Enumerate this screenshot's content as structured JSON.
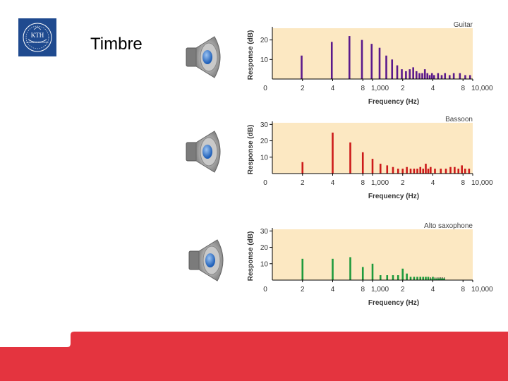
{
  "slide": {
    "title": "Timbre"
  },
  "logo": {
    "text": "KTH",
    "subtext": "VETENSKAP OCH KONST"
  },
  "colors": {
    "plot_bg": "#fce8c2",
    "footer": "#e4343f",
    "logo_bg": "#1f4a8f",
    "speaker_blue": "#2f73c9"
  },
  "chart_data": [
    {
      "type": "bar",
      "title": "Guitar",
      "xlabel": "Frequency (Hz)",
      "ylabel": "Response (dB)",
      "ylim": [
        0,
        26
      ],
      "yticks": [
        10,
        20
      ],
      "xscale": "log",
      "xlim": [
        100,
        10000
      ],
      "xtick_values": [
        100,
        200,
        400,
        800,
        1000,
        2000,
        4000,
        8000,
        10000
      ],
      "xtick_labels": [
        "0",
        "2",
        "4",
        "8",
        "1,000",
        "2",
        "4",
        "8",
        "10,000"
      ],
      "color": "#5b1a8c",
      "bars": [
        {
          "x": 196,
          "y": 12
        },
        {
          "x": 392,
          "y": 19
        },
        {
          "x": 588,
          "y": 22
        },
        {
          "x": 784,
          "y": 20
        },
        {
          "x": 980,
          "y": 18
        },
        {
          "x": 1176,
          "y": 16
        },
        {
          "x": 1372,
          "y": 12
        },
        {
          "x": 1568,
          "y": 10
        },
        {
          "x": 1764,
          "y": 7
        },
        {
          "x": 1960,
          "y": 5
        },
        {
          "x": 2156,
          "y": 4
        },
        {
          "x": 2352,
          "y": 5
        },
        {
          "x": 2548,
          "y": 6
        },
        {
          "x": 2744,
          "y": 4
        },
        {
          "x": 2940,
          "y": 3
        },
        {
          "x": 3136,
          "y": 3
        },
        {
          "x": 3332,
          "y": 5
        },
        {
          "x": 3528,
          "y": 3
        },
        {
          "x": 3724,
          "y": 2
        },
        {
          "x": 3920,
          "y": 3
        },
        {
          "x": 4116,
          "y": 2
        },
        {
          "x": 4508,
          "y": 3
        },
        {
          "x": 4900,
          "y": 2
        },
        {
          "x": 5292,
          "y": 3
        },
        {
          "x": 5880,
          "y": 2
        },
        {
          "x": 6468,
          "y": 3
        },
        {
          "x": 7448,
          "y": 3
        },
        {
          "x": 8428,
          "y": 2
        },
        {
          "x": 9408,
          "y": 2
        }
      ]
    },
    {
      "type": "bar",
      "title": "Bassoon",
      "xlabel": "Frequency (Hz)",
      "ylabel": "Response (dB)",
      "ylim": [
        0,
        31
      ],
      "yticks": [
        10,
        20,
        30
      ],
      "xscale": "log",
      "xlim": [
        100,
        10000
      ],
      "xtick_values": [
        100,
        200,
        400,
        800,
        1000,
        2000,
        4000,
        8000,
        10000
      ],
      "xtick_labels": [
        "0",
        "2",
        "4",
        "8",
        "1,000",
        "2",
        "4",
        "8",
        "10,000"
      ],
      "color": "#cc1a1a",
      "bars": [
        {
          "x": 200,
          "y": 7
        },
        {
          "x": 400,
          "y": 25
        },
        {
          "x": 600,
          "y": 19
        },
        {
          "x": 800,
          "y": 13
        },
        {
          "x": 1000,
          "y": 9
        },
        {
          "x": 1200,
          "y": 6
        },
        {
          "x": 1400,
          "y": 5
        },
        {
          "x": 1600,
          "y": 4
        },
        {
          "x": 1800,
          "y": 3
        },
        {
          "x": 2000,
          "y": 3
        },
        {
          "x": 2200,
          "y": 4
        },
        {
          "x": 2400,
          "y": 3
        },
        {
          "x": 2600,
          "y": 3
        },
        {
          "x": 2800,
          "y": 3
        },
        {
          "x": 3000,
          "y": 4
        },
        {
          "x": 3200,
          "y": 3
        },
        {
          "x": 3400,
          "y": 6
        },
        {
          "x": 3600,
          "y": 3
        },
        {
          "x": 3800,
          "y": 4
        },
        {
          "x": 4200,
          "y": 3
        },
        {
          "x": 4800,
          "y": 3
        },
        {
          "x": 5400,
          "y": 3
        },
        {
          "x": 6000,
          "y": 4
        },
        {
          "x": 6600,
          "y": 4
        },
        {
          "x": 7200,
          "y": 3
        },
        {
          "x": 7800,
          "y": 5
        },
        {
          "x": 8400,
          "y": 3
        },
        {
          "x": 9200,
          "y": 3
        }
      ]
    },
    {
      "type": "bar",
      "title": "Alto saxophone",
      "xlabel": "Frequency (Hz)",
      "ylabel": "Response (dB)",
      "ylim": [
        0,
        31
      ],
      "yticks": [
        10,
        20,
        30
      ],
      "xscale": "log",
      "xlim": [
        100,
        10000
      ],
      "xtick_values": [
        100,
        200,
        400,
        800,
        1000,
        2000,
        4000,
        8000,
        10000
      ],
      "xtick_labels": [
        "0",
        "2",
        "4",
        "8",
        "1,000",
        "2",
        "4",
        "8",
        "10,000"
      ],
      "color": "#1e9a3c",
      "bars": [
        {
          "x": 200,
          "y": 13
        },
        {
          "x": 400,
          "y": 13
        },
        {
          "x": 600,
          "y": 14
        },
        {
          "x": 800,
          "y": 8
        },
        {
          "x": 1000,
          "y": 10
        },
        {
          "x": 1200,
          "y": 3
        },
        {
          "x": 1400,
          "y": 3
        },
        {
          "x": 1600,
          "y": 3
        },
        {
          "x": 1800,
          "y": 3
        },
        {
          "x": 2000,
          "y": 7
        },
        {
          "x": 2200,
          "y": 4
        },
        {
          "x": 2400,
          "y": 2
        },
        {
          "x": 2600,
          "y": 2
        },
        {
          "x": 2800,
          "y": 2
        },
        {
          "x": 3000,
          "y": 2
        },
        {
          "x": 3200,
          "y": 2
        },
        {
          "x": 3400,
          "y": 2
        },
        {
          "x": 3600,
          "y": 2
        },
        {
          "x": 3800,
          "y": 1
        },
        {
          "x": 4000,
          "y": 2
        },
        {
          "x": 4200,
          "y": 1
        },
        {
          "x": 4400,
          "y": 1
        },
        {
          "x": 4600,
          "y": 1
        },
        {
          "x": 4800,
          "y": 1
        },
        {
          "x": 5000,
          "y": 1
        },
        {
          "x": 5200,
          "y": 1
        }
      ]
    }
  ]
}
